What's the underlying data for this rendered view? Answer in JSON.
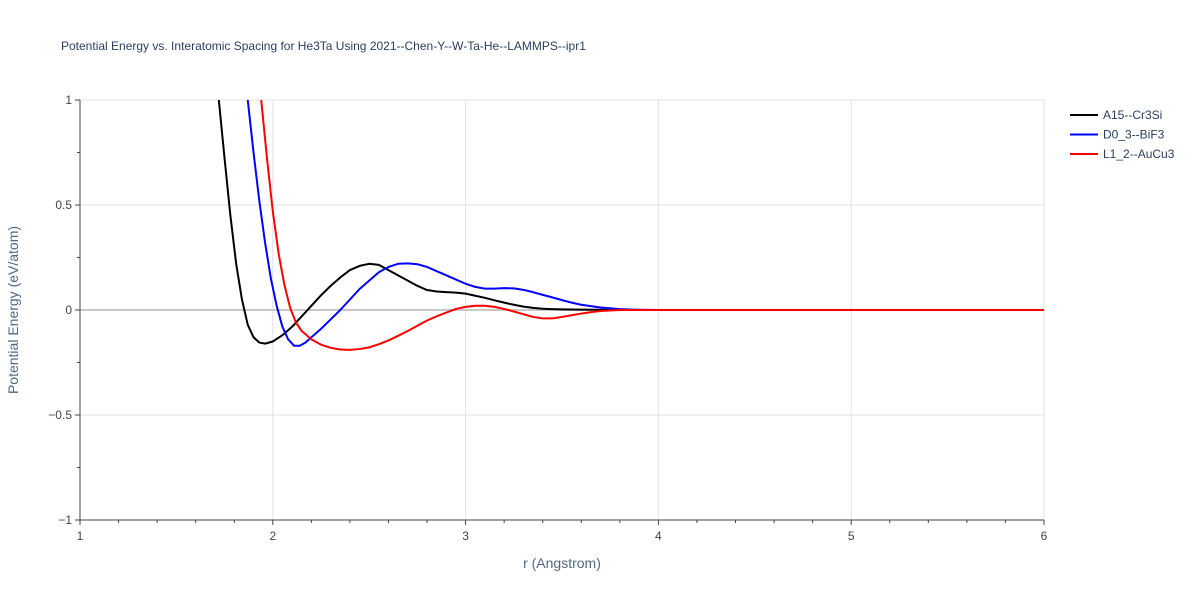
{
  "title": "Potential Energy vs. Interatomic Spacing for He3Ta Using 2021--Chen-Y--W-Ta-He--LAMMPS--ipr1",
  "chart_data": {
    "type": "line",
    "title": "Potential Energy vs. Interatomic Spacing for He3Ta Using 2021--Chen-Y--W-Ta-He--LAMMPS--ipr1",
    "xlabel": "r (Angstrom)",
    "ylabel": "Potential Energy (eV/atom)",
    "xlim": [
      1,
      6
    ],
    "ylim": [
      -1,
      1
    ],
    "x_ticks": [
      1,
      2,
      3,
      4,
      5,
      6
    ],
    "x_tick_labels": [
      "1",
      "2",
      "3",
      "4",
      "5",
      "6"
    ],
    "y_ticks": [
      -1,
      -0.5,
      0,
      0.5,
      1
    ],
    "y_tick_labels": [
      "−1",
      "−0.5",
      "0",
      "0.5",
      "1"
    ],
    "grid": true,
    "legend_position": "top-right",
    "series": [
      {
        "name": "A15--Cr3Si",
        "color": "#000000",
        "x": [
          1.72,
          1.75,
          1.78,
          1.81,
          1.84,
          1.87,
          1.9,
          1.93,
          1.96,
          2.0,
          2.05,
          2.1,
          2.15,
          2.2,
          2.25,
          2.3,
          2.35,
          2.4,
          2.45,
          2.5,
          2.55,
          2.6,
          2.65,
          2.7,
          2.75,
          2.8,
          2.85,
          2.9,
          2.95,
          3.0,
          3.05,
          3.1,
          3.15,
          3.2,
          3.25,
          3.3,
          3.35,
          3.4,
          3.45,
          3.5,
          3.6,
          3.7,
          3.8,
          3.9,
          4.0,
          4.5,
          5.0,
          5.5,
          6.0
        ],
        "y": [
          1.0,
          0.72,
          0.45,
          0.22,
          0.05,
          -0.07,
          -0.13,
          -0.155,
          -0.16,
          -0.15,
          -0.12,
          -0.08,
          -0.03,
          0.02,
          0.07,
          0.115,
          0.155,
          0.19,
          0.21,
          0.22,
          0.215,
          0.19,
          0.165,
          0.14,
          0.115,
          0.095,
          0.088,
          0.085,
          0.083,
          0.078,
          0.068,
          0.058,
          0.046,
          0.035,
          0.025,
          0.016,
          0.01,
          0.006,
          0.004,
          0.003,
          0.002,
          0.001,
          0.0,
          0.0,
          0.0,
          0.0,
          0.0,
          0.0,
          0.0
        ]
      },
      {
        "name": "D0_3--BiF3",
        "color": "#0000ff",
        "x": [
          1.87,
          1.9,
          1.93,
          1.96,
          1.99,
          2.02,
          2.05,
          2.08,
          2.11,
          2.14,
          2.17,
          2.2,
          2.25,
          2.3,
          2.35,
          2.4,
          2.45,
          2.5,
          2.55,
          2.6,
          2.65,
          2.7,
          2.75,
          2.8,
          2.85,
          2.9,
          2.95,
          3.0,
          3.05,
          3.1,
          3.15,
          3.2,
          3.25,
          3.3,
          3.35,
          3.4,
          3.45,
          3.5,
          3.55,
          3.6,
          3.7,
          3.8,
          3.9,
          4.0,
          4.5,
          5.0,
          5.5,
          6.0
        ],
        "y": [
          1.0,
          0.75,
          0.52,
          0.32,
          0.15,
          0.02,
          -0.08,
          -0.14,
          -0.17,
          -0.17,
          -0.155,
          -0.13,
          -0.09,
          -0.045,
          0.0,
          0.05,
          0.1,
          0.14,
          0.18,
          0.205,
          0.22,
          0.222,
          0.218,
          0.205,
          0.185,
          0.165,
          0.145,
          0.125,
          0.11,
          0.102,
          0.102,
          0.104,
          0.103,
          0.096,
          0.085,
          0.072,
          0.06,
          0.047,
          0.035,
          0.025,
          0.012,
          0.004,
          0.001,
          0.0,
          0.0,
          0.0,
          0.0,
          0.0
        ]
      },
      {
        "name": "L1_2--AuCu3",
        "color": "#ff0000",
        "x": [
          1.94,
          1.97,
          2.0,
          2.03,
          2.06,
          2.09,
          2.12,
          2.15,
          2.2,
          2.25,
          2.3,
          2.35,
          2.4,
          2.45,
          2.5,
          2.55,
          2.6,
          2.65,
          2.7,
          2.75,
          2.8,
          2.85,
          2.9,
          2.95,
          3.0,
          3.05,
          3.1,
          3.15,
          3.2,
          3.25,
          3.3,
          3.35,
          3.4,
          3.45,
          3.5,
          3.55,
          3.6,
          3.65,
          3.7,
          3.8,
          3.9,
          4.0,
          4.5,
          5.0,
          5.5,
          6.0
        ],
        "y": [
          1.0,
          0.72,
          0.47,
          0.27,
          0.12,
          0.01,
          -0.06,
          -0.1,
          -0.14,
          -0.165,
          -0.18,
          -0.188,
          -0.19,
          -0.186,
          -0.178,
          -0.163,
          -0.145,
          -0.123,
          -0.1,
          -0.075,
          -0.05,
          -0.03,
          -0.012,
          0.005,
          0.015,
          0.02,
          0.02,
          0.015,
          0.005,
          -0.007,
          -0.02,
          -0.033,
          -0.04,
          -0.04,
          -0.033,
          -0.025,
          -0.017,
          -0.01,
          -0.005,
          0.0,
          0.0,
          0.0,
          0.0,
          0.0,
          0.0,
          0.0
        ]
      }
    ]
  }
}
